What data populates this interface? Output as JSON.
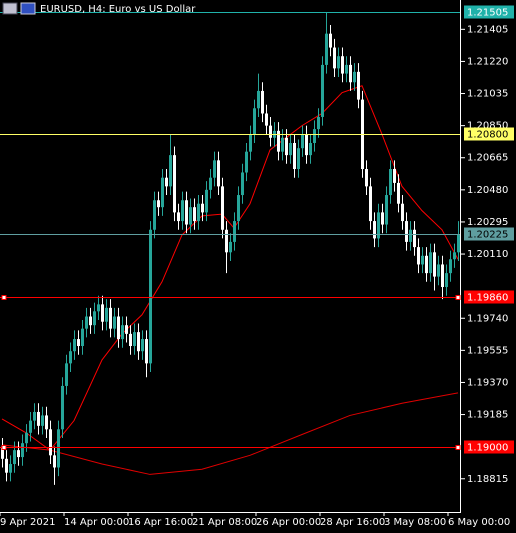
{
  "chart_data": {
    "type": "candlestick",
    "title": "EURUSD, H4:  Euro vs US Dollar",
    "categories": [
      "9 Apr 2021",
      null,
      null,
      null,
      null,
      null,
      null,
      null,
      null,
      null,
      null,
      null,
      null,
      null,
      null,
      null,
      "14 Apr 00:00",
      null,
      null,
      null,
      null,
      null,
      null,
      null,
      null,
      null,
      null,
      null,
      null,
      null,
      null,
      null,
      "16 Apr 16:00",
      null,
      null,
      null,
      null,
      null,
      null,
      null,
      null,
      null,
      null,
      null,
      null,
      null,
      null,
      null,
      "21 Apr 08:00",
      null,
      null,
      null,
      null,
      null,
      null,
      null,
      null,
      null,
      null,
      null,
      null,
      null,
      null,
      null,
      "26 Apr 00:00",
      null,
      null,
      null,
      null,
      null,
      null,
      null,
      null,
      null,
      null,
      null,
      null,
      null,
      null,
      null,
      "28 Apr 16:00",
      null,
      null,
      null,
      null,
      null,
      null,
      null,
      null,
      null,
      null,
      null,
      null,
      null,
      null,
      null,
      "3 May 08:00",
      null,
      null,
      null,
      null,
      null,
      null,
      null,
      null,
      null,
      null,
      null,
      null,
      null,
      null,
      null,
      "6 May 00:00",
      null,
      null
    ],
    "open": [
      1.19,
      1.1893,
      1.1885,
      1.189,
      1.1898,
      1.1894,
      1.1902,
      1.1908,
      1.1915,
      1.192,
      1.1912,
      1.1918,
      1.191,
      1.1895,
      1.1888,
      1.191,
      1.1935,
      1.1948,
      1.1955,
      1.1962,
      1.1958,
      1.1968,
      1.1975,
      1.197,
      1.1978,
      1.1982,
      1.1972,
      1.198,
      1.1968,
      1.1975,
      1.1962,
      1.197,
      1.1965,
      1.1958,
      1.1966,
      1.1955,
      1.1962,
      1.1948,
      1.2025,
      1.2042,
      1.2038,
      1.2055,
      1.205,
      1.2068,
      1.2035,
      1.203,
      1.2042,
      1.2028,
      1.2038,
      1.203,
      1.204,
      1.2035,
      1.2048,
      1.2055,
      1.2065,
      1.205,
      1.2025,
      1.2012,
      1.2018,
      1.203,
      1.2045,
      1.2058,
      1.207,
      1.208,
      1.2095,
      1.2105,
      1.2092,
      1.2085,
      1.2078,
      1.2082,
      1.207,
      1.2078,
      1.2068,
      1.2075,
      1.206,
      1.2072,
      1.208,
      1.2068,
      1.2075,
      1.2083,
      1.209,
      1.212,
      1.2138,
      1.213,
      1.2118,
      1.2125,
      1.2115,
      1.212,
      1.211,
      1.2116,
      1.21,
      1.206,
      1.205,
      1.203,
      1.202,
      1.2035,
      1.2028,
      1.2045,
      1.206,
      1.2052,
      1.204,
      1.203,
      1.2018,
      1.2025,
      1.2015,
      1.2005,
      1.201,
      1.2,
      1.2012,
      1.1998,
      1.2005,
      1.1992,
      1.2,
      1.2008,
      1.2012
    ],
    "high": [
      1.1905,
      1.1898,
      1.1895,
      1.1903,
      1.1903,
      1.1907,
      1.1913,
      1.192,
      1.1925,
      1.1925,
      1.1923,
      1.1923,
      1.1915,
      1.19,
      1.1915,
      1.194,
      1.1953,
      1.196,
      1.1967,
      1.1967,
      1.1973,
      1.198,
      1.198,
      1.1983,
      1.1987,
      1.1987,
      1.1985,
      1.1985,
      1.198,
      1.198,
      1.1975,
      1.1975,
      1.197,
      1.1971,
      1.1971,
      1.1967,
      1.1967,
      1.203,
      1.2047,
      1.2047,
      1.206,
      1.206,
      1.208,
      1.2073,
      1.204,
      1.2047,
      1.2047,
      1.2043,
      1.2043,
      1.2045,
      1.2045,
      1.2053,
      1.206,
      1.207,
      1.207,
      1.2055,
      1.203,
      1.2023,
      1.2035,
      1.205,
      1.2063,
      1.2075,
      1.2085,
      1.21,
      1.2115,
      1.211,
      1.2097,
      1.209,
      1.2087,
      1.2087,
      1.2083,
      1.2083,
      1.208,
      1.208,
      1.2077,
      1.2085,
      1.2085,
      1.208,
      1.2088,
      1.2095,
      1.2125,
      1.215,
      1.2143,
      1.2135,
      1.213,
      1.213,
      1.2125,
      1.2125,
      1.2121,
      1.2121,
      1.2105,
      1.2065,
      1.2055,
      1.2035,
      1.204,
      1.204,
      1.205,
      1.2065,
      1.2065,
      1.2057,
      1.2045,
      1.2035,
      1.203,
      1.203,
      1.202,
      1.2015,
      1.2015,
      1.2017,
      1.2017,
      1.201,
      1.201,
      1.2005,
      1.2013,
      1.2017,
      1.203
    ],
    "low": [
      1.1888,
      1.188,
      1.188,
      1.1885,
      1.1889,
      1.1889,
      1.1897,
      1.1903,
      1.191,
      1.1907,
      1.1907,
      1.1905,
      1.189,
      1.1878,
      1.1883,
      1.1905,
      1.193,
      1.1943,
      1.195,
      1.1953,
      1.1953,
      1.1963,
      1.1965,
      1.1965,
      1.1973,
      1.1967,
      1.1967,
      1.1963,
      1.1963,
      1.1957,
      1.1957,
      1.196,
      1.1953,
      1.1953,
      1.195,
      1.195,
      1.194,
      1.1943,
      1.202,
      1.2033,
      1.2033,
      1.2045,
      1.2045,
      1.203,
      1.2025,
      1.2025,
      1.2023,
      1.2023,
      1.2025,
      1.2025,
      1.203,
      1.203,
      1.2043,
      1.205,
      1.2045,
      1.202,
      1.2,
      1.2007,
      1.2013,
      1.2025,
      1.204,
      1.2053,
      1.2065,
      1.2075,
      1.209,
      1.2087,
      1.208,
      1.2073,
      1.2073,
      1.2065,
      1.2065,
      1.2063,
      1.2063,
      1.2055,
      1.2055,
      1.2067,
      1.2063,
      1.2063,
      1.207,
      1.2078,
      1.2085,
      1.2115,
      1.2125,
      1.2113,
      1.2113,
      1.211,
      1.211,
      1.2105,
      1.2105,
      1.2095,
      1.2055,
      1.2045,
      1.2025,
      1.2015,
      1.2015,
      1.2023,
      1.2023,
      1.204,
      1.2047,
      1.2035,
      1.2025,
      1.2013,
      1.2013,
      1.201,
      1.2,
      1.2,
      1.1995,
      1.1995,
      1.199,
      1.1993,
      1.1985,
      1.1987,
      1.1995,
      1.2003,
      1.2007
    ],
    "close": [
      1.1893,
      1.1885,
      1.189,
      1.1898,
      1.1894,
      1.1902,
      1.1908,
      1.1915,
      1.192,
      1.1912,
      1.1918,
      1.191,
      1.1895,
      1.1888,
      1.191,
      1.1935,
      1.1948,
      1.1955,
      1.1962,
      1.1958,
      1.1968,
      1.1975,
      1.197,
      1.1978,
      1.1982,
      1.1972,
      1.198,
      1.1968,
      1.1975,
      1.1962,
      1.197,
      1.1965,
      1.1958,
      1.1966,
      1.1955,
      1.1962,
      1.1948,
      1.2025,
      1.2042,
      1.2038,
      1.2055,
      1.205,
      1.2068,
      1.2035,
      1.203,
      1.2042,
      1.2028,
      1.2038,
      1.203,
      1.204,
      1.2035,
      1.2048,
      1.2055,
      1.2065,
      1.205,
      1.2025,
      1.2012,
      1.2018,
      1.203,
      1.2045,
      1.2058,
      1.207,
      1.208,
      1.2095,
      1.2105,
      1.2092,
      1.2085,
      1.2078,
      1.2082,
      1.207,
      1.2078,
      1.2068,
      1.2075,
      1.206,
      1.2072,
      1.208,
      1.2068,
      1.2075,
      1.2083,
      1.209,
      1.212,
      1.2138,
      1.213,
      1.2118,
      1.2125,
      1.2115,
      1.212,
      1.211,
      1.2116,
      1.21,
      1.206,
      1.205,
      1.203,
      1.202,
      1.2035,
      1.2028,
      1.2045,
      1.206,
      1.2052,
      1.204,
      1.203,
      1.2018,
      1.2025,
      1.2015,
      1.2005,
      1.201,
      1.2,
      1.2012,
      1.1998,
      1.2005,
      1.1992,
      1.2,
      1.2008,
      1.2012,
      1.2022
    ],
    "up_color": "#26a69a",
    "down_color": "#ffffff",
    "moving_averages": [
      {
        "color": "#ff0000",
        "x": [
          0,
          6,
          12,
          18,
          25,
          30,
          35,
          40,
          45,
          50,
          55,
          58,
          62,
          67,
          75,
          80,
          85,
          90,
          95,
          100,
          105,
          110,
          114
        ],
        "values": [
          1.1916,
          1.1908,
          1.1898,
          1.1915,
          1.195,
          1.1965,
          1.1976,
          1.1995,
          1.2022,
          1.2033,
          1.2034,
          1.2026,
          1.204,
          1.2071,
          1.2085,
          1.2092,
          1.2104,
          1.2108,
          1.208,
          1.205,
          1.2036,
          1.2025,
          1.2008
        ]
      },
      {
        "color": "#e00000",
        "x": [
          0,
          12,
          25,
          37,
          50,
          62,
          75,
          87,
          100,
          114
        ],
        "values": [
          1.1901,
          1.1898,
          1.189,
          1.1884,
          1.1887,
          1.1895,
          1.1907,
          1.1918,
          1.1925,
          1.1931
        ]
      }
    ],
    "levels": [
      {
        "value": 1.21505,
        "color": "#20b2aa",
        "label_color": "#ffffff"
      },
      {
        "value": 1.208,
        "label": "1.20800",
        "color": "#ffff66",
        "label_color": "#000000"
      },
      {
        "value": 1.20225,
        "color": "#5f9ea0",
        "label_color": "#000000"
      },
      {
        "value": 1.1986,
        "label": "1.19860",
        "color": "#ff0000",
        "label_color": "#ffffff"
      },
      {
        "value": 1.19,
        "label": "1.19000",
        "color": "#ff0000",
        "label_color": "#ffffff"
      }
    ],
    "ylim": [
      1.18635,
      1.21574
    ],
    "yticks": [
      1.21405,
      {
        "value": 1.2122,
        "label": "1.21220"
      },
      1.21035,
      {
        "value": 1.2085,
        "label": "1.20850"
      },
      1.20665,
      {
        "value": 1.2048,
        "label": "1.20480"
      },
      1.20295,
      {
        "value": 1.2011,
        "label": "1.20110"
      },
      {
        "value": 1.1974,
        "label": "1.19740"
      },
      1.19555,
      {
        "value": 1.1937,
        "label": "1.19370"
      },
      1.19185,
      1.18815
    ]
  }
}
